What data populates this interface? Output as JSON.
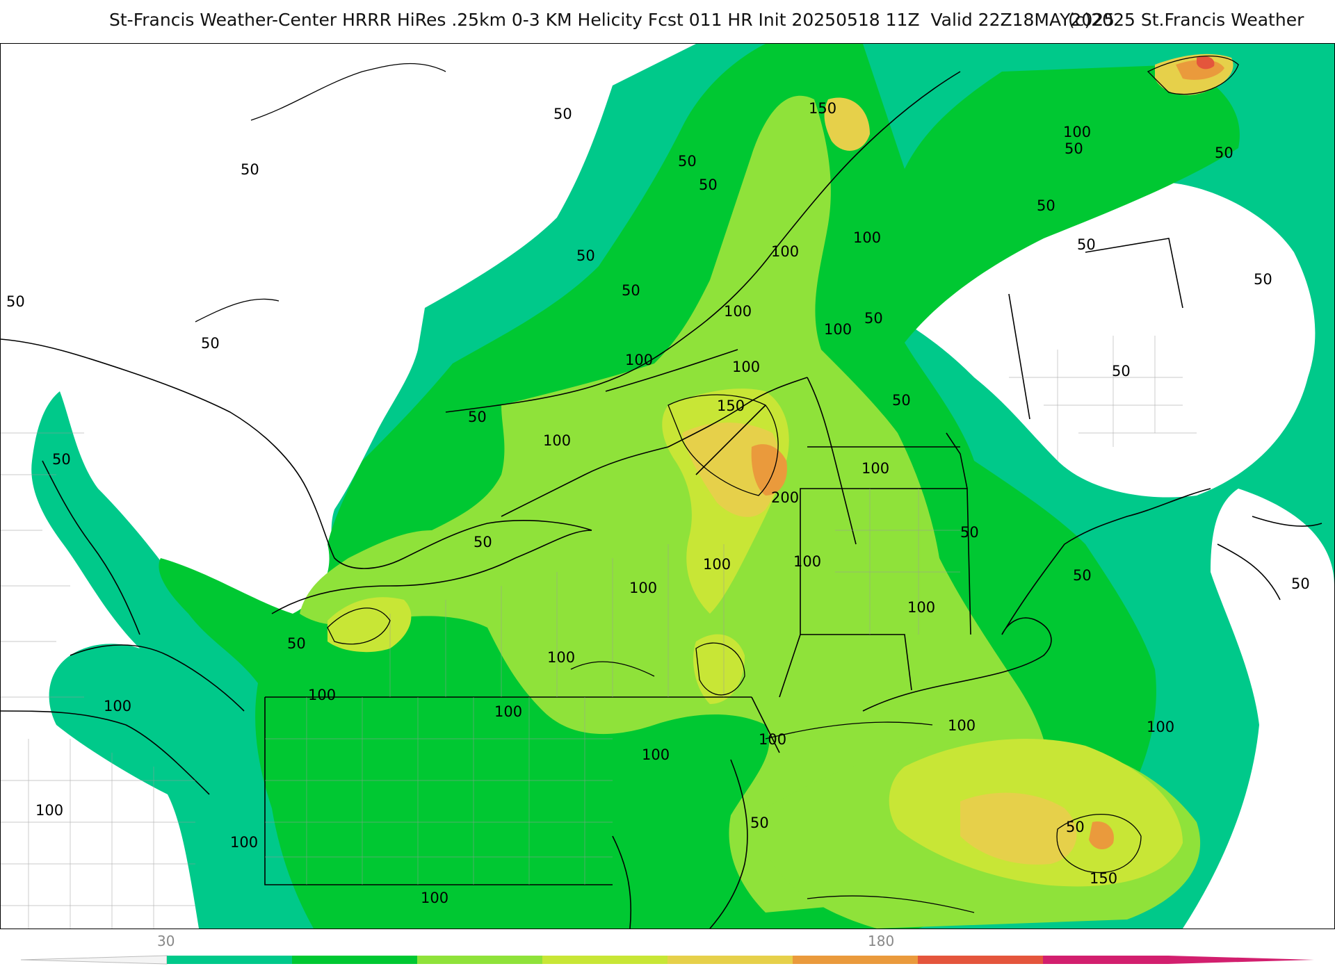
{
  "header": {
    "title": "St-Francis Weather-Center HRRR HiRes .25km 0-3 KM Helicity Fcst 011 HR Init 20250518 11Z  Valid 22Z18MAY2025",
    "credit": "(c)2025 St.Francis Weather"
  },
  "map": {
    "product": "0-3 KM Helicity",
    "contour_labels": [
      "50",
      "100",
      "150",
      "200"
    ],
    "shading_colors": [
      "#00c98a",
      "#00c832",
      "#8fe23a",
      "#c8e636",
      "#e6d04a",
      "#ea9a3c",
      "#e4553c",
      "#d21f6e"
    ]
  },
  "legend": {
    "tick_labels": [
      "30",
      "180"
    ],
    "colors": [
      "#00c98a",
      "#00c832",
      "#8fe23a",
      "#c8e636",
      "#e6d04a",
      "#ea9a3c",
      "#e4553c",
      "#d21f6e"
    ]
  }
}
